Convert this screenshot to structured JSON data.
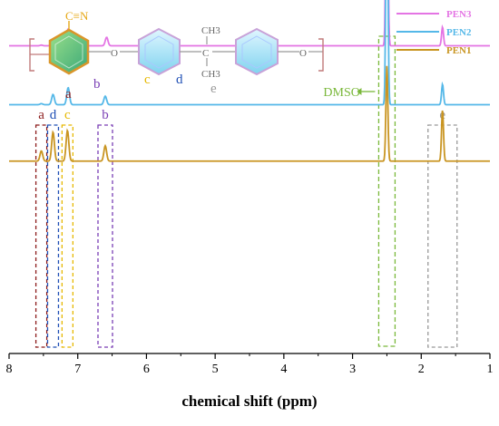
{
  "chart_data": {
    "type": "line",
    "xlabel": "chemical shift  (ppm)",
    "xlim": [
      8,
      1
    ],
    "x_ticks": [
      "8",
      "7",
      "6",
      "5",
      "4",
      "3",
      "2",
      "1"
    ],
    "grid": false,
    "legend_position": "top-right",
    "series": [
      {
        "name": "PEN3",
        "color": "#e474e4",
        "baseline": 0.28,
        "peaks": [
          {
            "x": 7.53,
            "h": 0.002
          },
          {
            "x": 7.38,
            "h": 0.004
          },
          {
            "x": 7.14,
            "h": 0.05
          },
          {
            "x": 6.58,
            "h": 0.025
          },
          {
            "x": 2.5,
            "h": 0.75
          },
          {
            "x": 1.69,
            "h": 0.055
          }
        ]
      },
      {
        "name": "PEN2",
        "color": "#55b8e8",
        "baseline": 0.64,
        "peaks": [
          {
            "x": 7.53,
            "h": 0.003
          },
          {
            "x": 7.36,
            "h": 0.03
          },
          {
            "x": 7.14,
            "h": 0.05
          },
          {
            "x": 6.6,
            "h": 0.025
          },
          {
            "x": 2.5,
            "h": 0.78
          },
          {
            "x": 1.69,
            "h": 0.06
          }
        ]
      },
      {
        "name": "PEN1",
        "color": "#c99522",
        "baseline": 0.985,
        "peaks": [
          {
            "x": 7.53,
            "h": 0.03
          },
          {
            "x": 7.36,
            "h": 0.085
          },
          {
            "x": 7.15,
            "h": 0.09
          },
          {
            "x": 6.6,
            "h": 0.045
          },
          {
            "x": 2.5,
            "h": 0.28
          },
          {
            "x": 1.69,
            "h": 0.15
          }
        ]
      }
    ],
    "annotations": {
      "peak_letters": [
        {
          "label": "a",
          "x": 7.53,
          "color": "#8b1a1a"
        },
        {
          "label": "d",
          "x": 7.36,
          "color": "#1f4fb5"
        },
        {
          "label": "c",
          "x": 7.15,
          "color": "#e6b800"
        },
        {
          "label": "b",
          "x": 6.6,
          "color": "#7a3fb5"
        },
        {
          "label": "e",
          "x": 1.69,
          "color": "#999999"
        }
      ],
      "dmso": {
        "label": "DMSO",
        "x": 2.5,
        "color": "#7ab83a"
      }
    },
    "structure": {
      "cyano": "C≡N",
      "methyl_top": "CH3",
      "methyl_bottom": "CH3",
      "oxygen": "O",
      "carbon": "C",
      "labels": {
        "a": "a",
        "b": "b",
        "c": "c",
        "d": "d",
        "e": "e"
      },
      "label_colors": {
        "a": "#8b1a1a",
        "b": "#7a3fb5",
        "c": "#e6b800",
        "d": "#1f4fb5",
        "e": "#999999",
        "cyano": "#e6a817",
        "bracket": "#c07a7a"
      }
    }
  }
}
